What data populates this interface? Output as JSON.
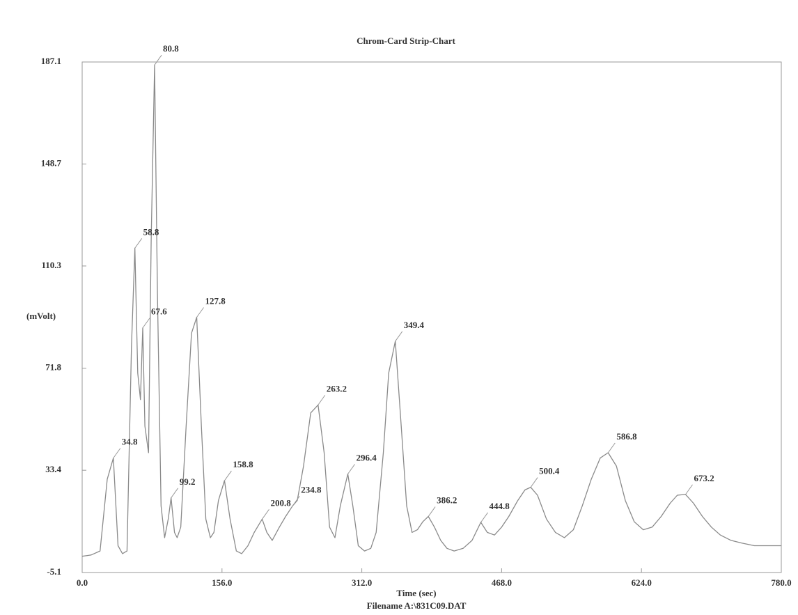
{
  "chart_data": {
    "type": "line",
    "title": "Chrom-Card Strip-Chart",
    "xlabel": "Time (sec)",
    "subtitle": "Filename A:\\831C09.DAT",
    "ylabel": "(mVolt)",
    "xlim": [
      0,
      780
    ],
    "ylim": [
      -5.1,
      187.1
    ],
    "xticks": [
      {
        "value": 0,
        "label": "0.0"
      },
      {
        "value": 156,
        "label": "156.0"
      },
      {
        "value": 312,
        "label": "312.0"
      },
      {
        "value": 468,
        "label": "468.0"
      },
      {
        "value": 624,
        "label": "624.0"
      },
      {
        "value": 780,
        "label": "780.0"
      }
    ],
    "yticks": [
      -5.1,
      33.4,
      71.8,
      110.3,
      148.7,
      187.1
    ],
    "grid": false,
    "x": [
      0,
      10,
      20,
      28,
      34.8,
      40,
      45,
      50,
      55,
      58.8,
      62,
      65,
      67.6,
      70,
      74,
      77,
      80.8,
      84,
      88,
      92,
      96,
      99.2,
      103,
      106,
      110,
      116,
      122,
      127.8,
      133,
      138,
      143,
      147,
      152,
      158.8,
      165,
      172,
      178,
      185,
      192,
      200.8,
      206,
      212,
      220,
      227,
      234.8,
      240,
      247,
      255,
      263.2,
      270,
      276,
      282,
      288,
      296.4,
      302,
      308,
      315,
      322,
      328,
      336,
      342,
      349.4,
      356,
      362,
      368,
      374,
      380,
      386.2,
      393,
      400,
      407,
      415,
      425,
      435,
      444.8,
      452,
      460,
      468,
      476,
      486,
      494,
      500.4,
      508,
      518,
      528,
      538,
      548,
      558,
      568,
      578,
      586.8,
      596,
      606,
      616,
      626,
      636,
      646,
      656,
      664,
      673.2,
      682,
      692,
      702,
      712,
      724,
      736,
      750,
      765,
      780
    ],
    "series": [
      {
        "color": "#8a8a8a",
        "values": [
          1,
          1.5,
          3,
          30,
          38,
          5,
          2,
          3,
          80,
          117,
          70,
          60,
          87,
          50,
          40,
          120,
          186,
          100,
          20,
          8,
          15,
          23,
          10,
          8,
          12,
          50,
          85,
          91,
          50,
          15,
          8,
          10,
          22,
          29.5,
          15,
          3,
          2,
          5,
          10,
          15,
          10,
          7,
          12,
          16,
          20,
          22,
          35,
          55,
          58,
          40,
          12,
          8,
          20,
          32,
          20,
          5,
          3,
          4,
          10,
          40,
          70,
          82,
          50,
          20,
          10,
          11,
          14,
          16,
          12,
          7,
          4,
          3,
          4,
          7,
          13.8,
          10,
          9,
          12,
          16,
          22,
          26,
          27,
          24,
          15,
          10,
          8,
          11,
          20,
          30,
          38,
          40,
          35,
          22,
          14,
          11,
          12,
          16,
          21,
          24,
          24.3,
          21,
          16,
          12,
          9,
          7,
          6,
          5,
          5,
          5
        ]
      }
    ],
    "peak_labels": {
      "x": [
        34.8,
        58.8,
        67.6,
        80.8,
        99.2,
        127.8,
        158.8,
        200.8,
        234.8,
        263.2,
        296.4,
        349.4,
        386.2,
        444.8,
        500.4,
        586.8,
        673.2
      ],
      "y": [
        38,
        117,
        87,
        186,
        23,
        91,
        29.5,
        15,
        20,
        58,
        32,
        82,
        16,
        13.8,
        27,
        40,
        24.3
      ]
    }
  }
}
